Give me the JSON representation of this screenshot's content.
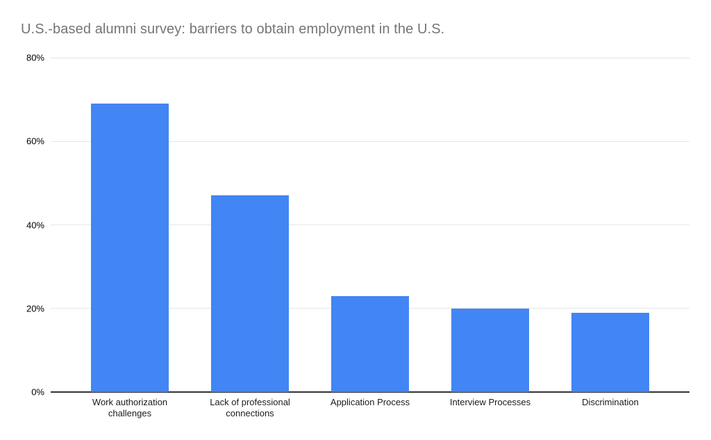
{
  "chart_data": {
    "type": "bar",
    "title": "U.S.-based alumni survey: barriers to obtain employment in the U.S.",
    "categories": [
      "Work authorization\nchallenges",
      "Lack of professional\nconnections",
      "Application Process",
      "Interview Processes",
      "Discrimination"
    ],
    "values": [
      69,
      47,
      23,
      20,
      19
    ],
    "unit": "%",
    "xlabel": "",
    "ylabel": "",
    "ylim": [
      0,
      80
    ],
    "yticks": [
      0,
      20,
      40,
      60,
      80
    ],
    "ytick_labels": [
      "0%",
      "20%",
      "40%",
      "60%",
      "80%"
    ],
    "grid": true,
    "legend_position": "none",
    "colors": {
      "bar": "#4285f4",
      "title": "#757575",
      "gridline": "#e6e6e6",
      "axis_line": "#333333",
      "tick_label": "#000000",
      "category_label": "#1a1a1a",
      "background": "#ffffff"
    }
  }
}
